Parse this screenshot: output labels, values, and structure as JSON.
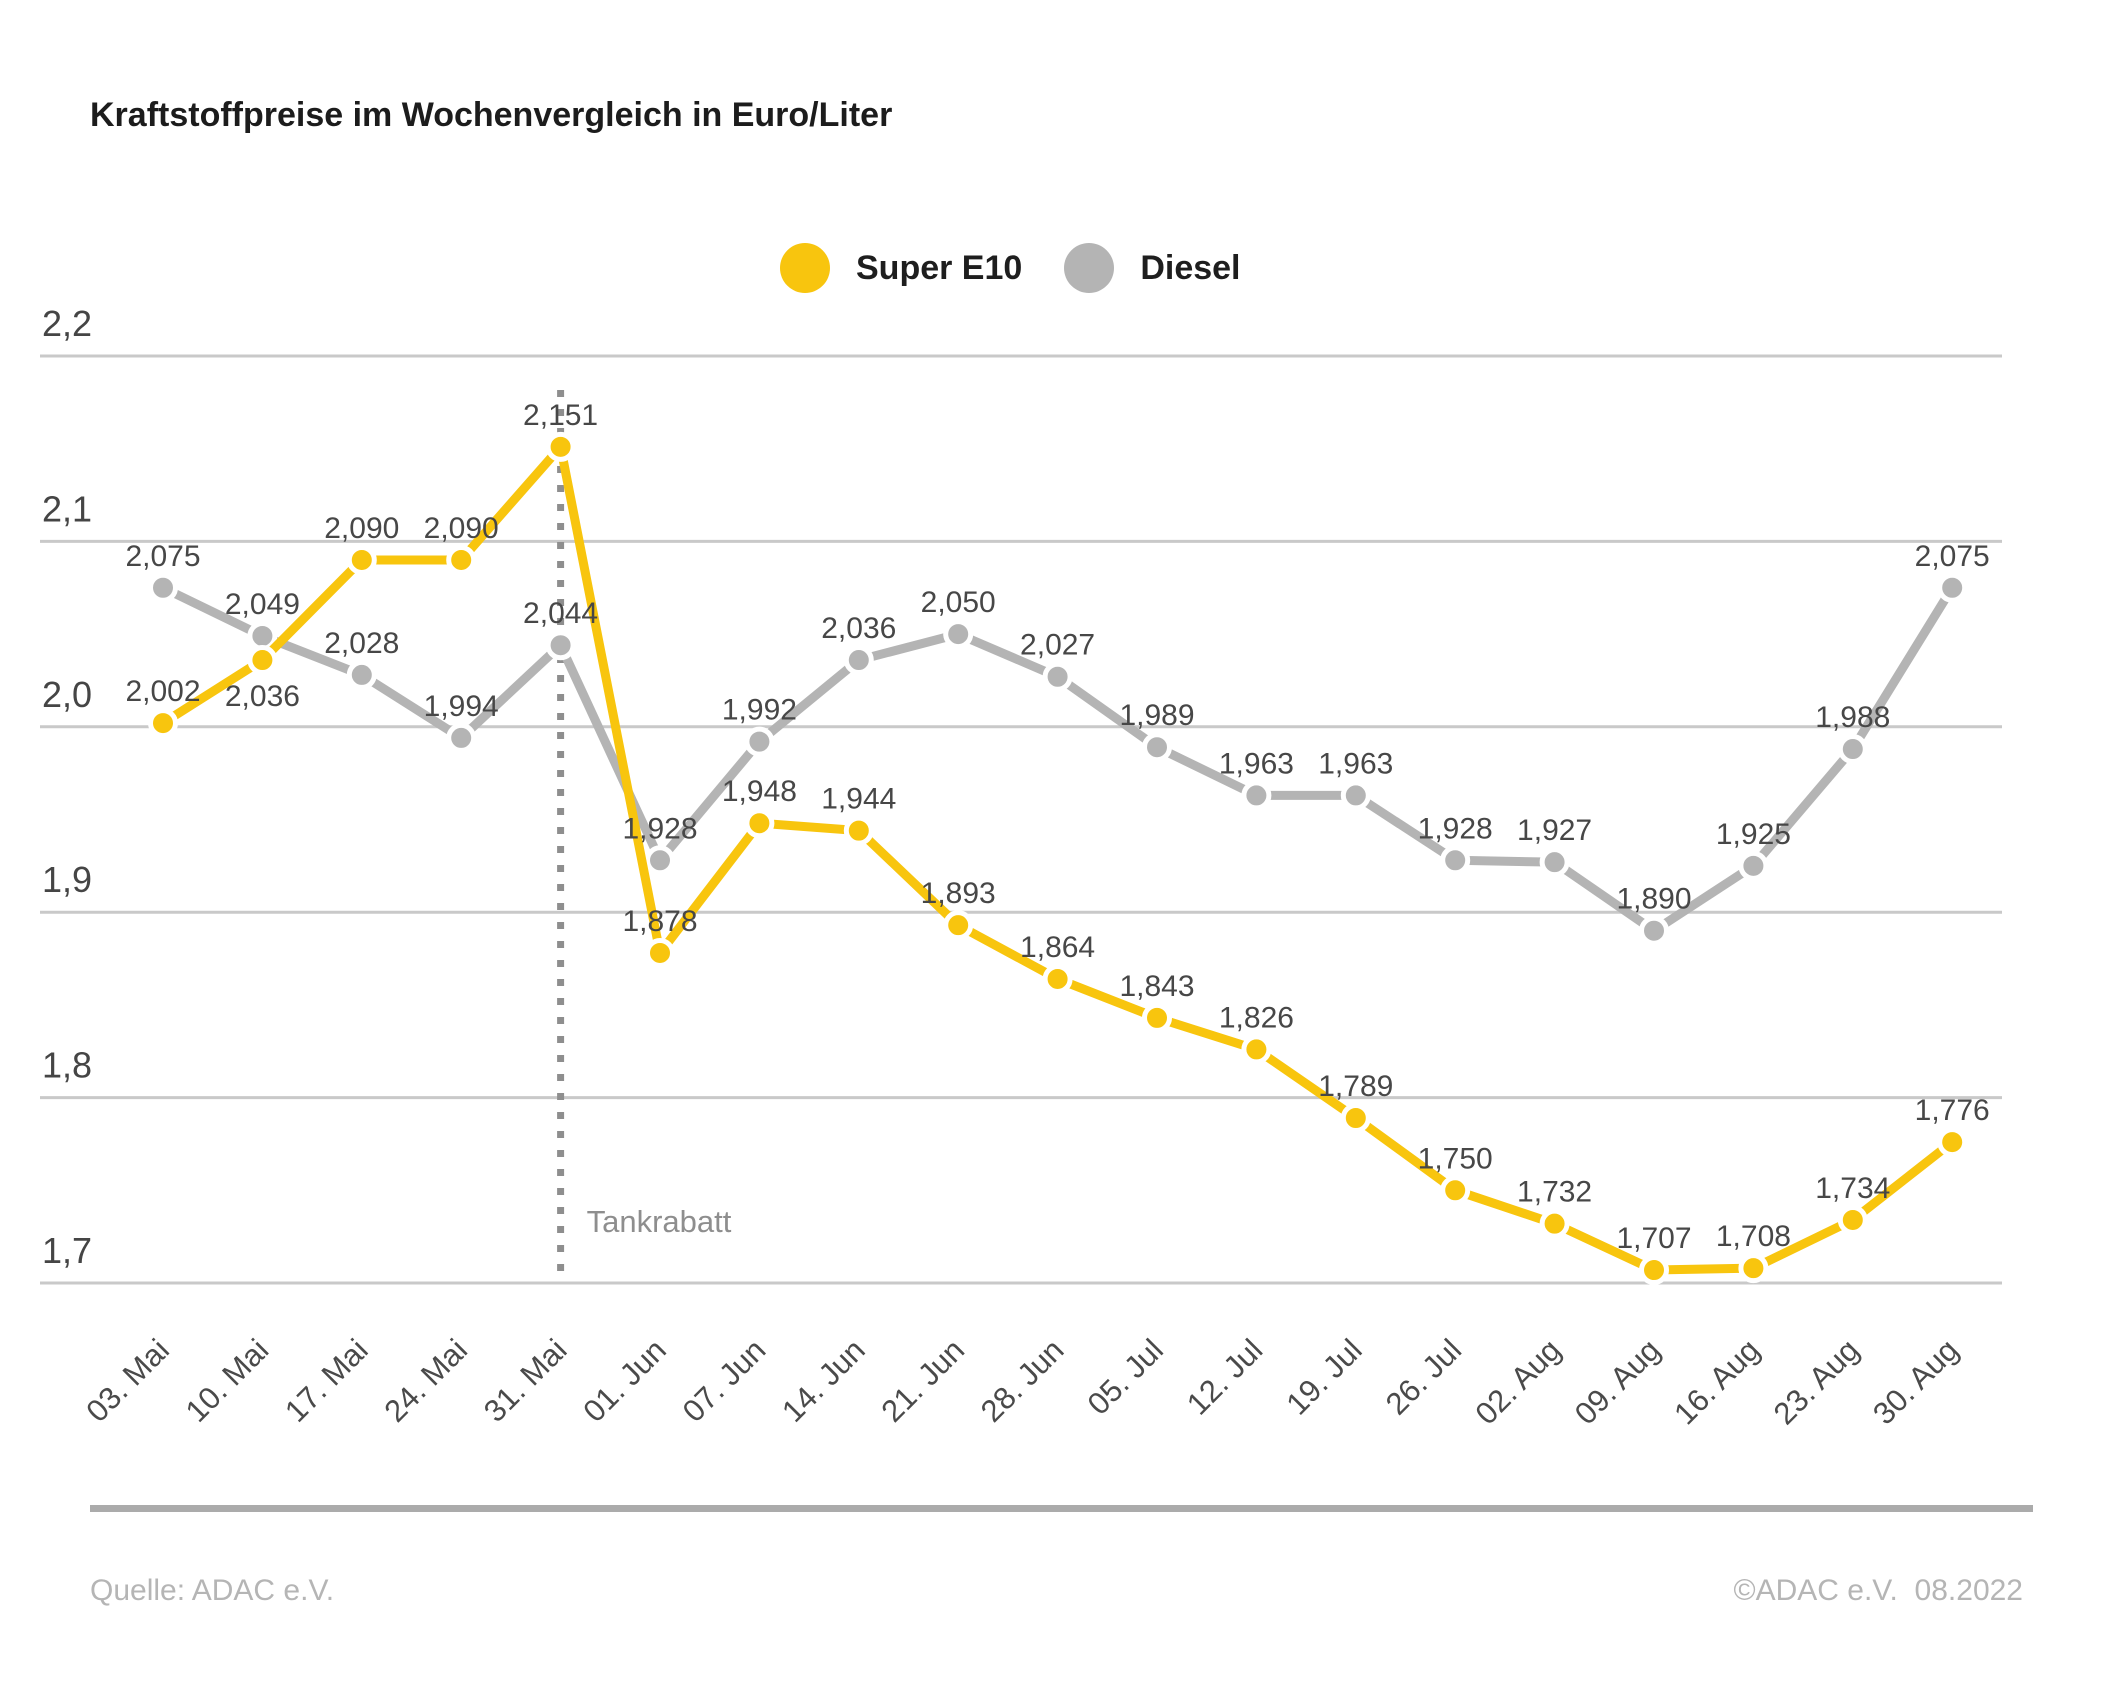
{
  "title": "Kraftstoffpreise im Wochenvergleich in Euro/Liter",
  "chart_data": {
    "type": "line",
    "title": "Kraftstoffpreise im Wochenvergleich in Euro/Liter",
    "categories": [
      "03. Mai",
      "10. Mai",
      "17. Mai",
      "24. Mai",
      "31. Mai",
      "01. Jun",
      "07. Jun",
      "14. Jun",
      "21. Jun",
      "28. Jun",
      "05. Jul",
      "12. Jul",
      "19. Jul",
      "26. Jul",
      "02. Aug",
      "09. Aug",
      "16. Aug",
      "23. Aug",
      "30. Aug"
    ],
    "series": [
      {
        "name": "Super E10",
        "color": "#f8c50e",
        "values": [
          2.002,
          2.036,
          2.09,
          2.09,
          2.151,
          1.878,
          1.948,
          1.944,
          1.893,
          1.864,
          1.843,
          1.826,
          1.789,
          1.75,
          1.732,
          1.707,
          1.708,
          1.734,
          1.776
        ],
        "label_below_indices": [
          1
        ]
      },
      {
        "name": "Diesel",
        "color": "#b4b4b4",
        "values": [
          2.075,
          2.049,
          2.028,
          1.994,
          2.044,
          1.928,
          1.992,
          2.036,
          2.05,
          2.027,
          1.989,
          1.963,
          1.963,
          1.928,
          1.927,
          1.89,
          1.925,
          1.988,
          2.075
        ],
        "label_below_indices": []
      }
    ],
    "ylim": [
      1.7,
      2.2
    ],
    "yticks": [
      2.2,
      2.1,
      2.0,
      1.9,
      1.8,
      1.7
    ],
    "decimal_separator": ",",
    "grid": true,
    "legend_position": "top-center",
    "annotation": {
      "label": "Tankrabatt",
      "category": "31. Mai",
      "category_index": 4
    }
  },
  "footer": {
    "source": "Quelle: ADAC e.V.",
    "copyright": "©ADAC e.V.  08.2022"
  },
  "colors": {
    "super_e10": "#f8c50e",
    "diesel": "#b4b4b4",
    "gridline": "#c9c9c9",
    "value_label": "#474747",
    "axis_label": "#4a4a4a",
    "annotation": "#8e8e8e",
    "footer_text": "#b5b5b5"
  }
}
